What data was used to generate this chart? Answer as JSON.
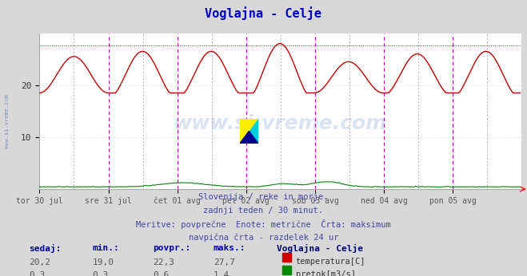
{
  "title": "Voglajna - Celje",
  "title_color": "#0000cc",
  "bg_color": "#d8d8d8",
  "plot_bg_color": "#ffffff",
  "grid_color": "#cccccc",
  "ylim": [
    0,
    30
  ],
  "yticks": [
    10,
    20
  ],
  "x_labels": [
    "tor 30 jul",
    "sre 31 jul",
    "čet 01 avg",
    "pet 02 avg",
    "sob 03 avg",
    "ned 04 avg",
    "pon 05 avg"
  ],
  "n_points": 336,
  "pts_per_day": 48,
  "temp_color": "#cc0000",
  "flow_color": "#008800",
  "max_line_color": "#ff0000",
  "vline_color_major": "#cc00cc",
  "vline_color_minor": "#999999",
  "max_temp": 27.7,
  "min_temp": 19.0,
  "avg_temp": 22.3,
  "last_temp": 20.2,
  "max_flow": 1.4,
  "min_flow": 0.3,
  "avg_flow": 0.6,
  "last_flow": 0.3,
  "subtitle_lines": [
    "Slovenija / reke in morje.",
    "zadnji teden / 30 minut.",
    "Meritve: povprečne  Enote: metrične  Črta: maksimum",
    "navpična črta - razdelek 24 ur"
  ],
  "subtitle_color": "#4444aa",
  "watermark": "www.si-vreme.com",
  "stat_label_color": "#0000aa",
  "stat_value_color": "#555555",
  "legend_title": "Voglajna - Celje",
  "legend_title_color": "#000080"
}
